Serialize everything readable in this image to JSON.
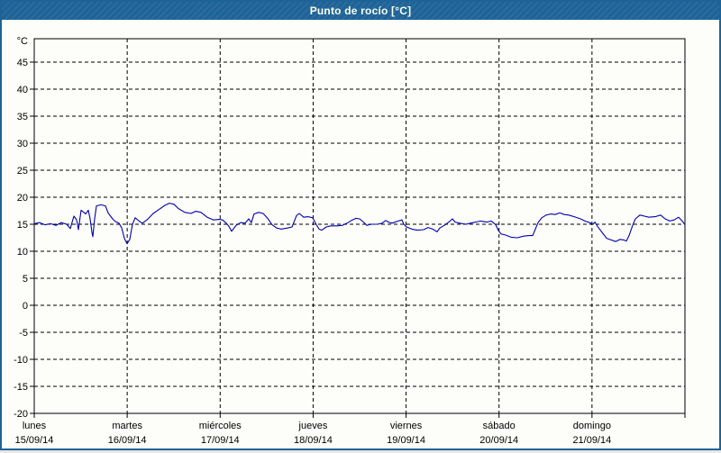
{
  "title": "Punto de rocío [°C]",
  "colors": {
    "titlebar": "#1E6397",
    "window_border": "#1E6397",
    "title_text": "#FCFCF0",
    "plot_background": "#FDFEFA",
    "axis": "#000000",
    "grid": "#000000",
    "line": "#0000AA",
    "label_text": "#000000"
  },
  "chart_data": {
    "type": "line",
    "title": "Punto de rocío [°C]",
    "ylabel": "°C",
    "unit_label": "°C",
    "ylim": [
      -20,
      49.33
    ],
    "yticks": [
      45,
      40,
      35,
      30,
      25,
      20,
      15,
      10,
      5,
      0,
      -5,
      -10,
      -15,
      -20
    ],
    "grid": "dashed",
    "legend": "none",
    "days": [
      {
        "name": "lunes",
        "date": "15/09/14"
      },
      {
        "name": "martes",
        "date": "16/09/14"
      },
      {
        "name": "miércoles",
        "date": "17/09/14"
      },
      {
        "name": "jueves",
        "date": "18/09/14"
      },
      {
        "name": "viernes",
        "date": "19/09/14"
      },
      {
        "name": "sábado",
        "date": "20/09/14"
      },
      {
        "name": "domingo",
        "date": "21/09/14"
      }
    ],
    "x_unit": "days_from_monday_midnight",
    "series": [
      {
        "name": "Punto de rocío",
        "color": "#0000AA",
        "points": [
          [
            0.0,
            15.1
          ],
          [
            0.058,
            15.3
          ],
          [
            0.116,
            14.9
          ],
          [
            0.175,
            15.1
          ],
          [
            0.233,
            14.8
          ],
          [
            0.291,
            15.3
          ],
          [
            0.349,
            15.0
          ],
          [
            0.388,
            14.2
          ],
          [
            0.427,
            16.5
          ],
          [
            0.456,
            15.8
          ],
          [
            0.475,
            14.0
          ],
          [
            0.504,
            17.6
          ],
          [
            0.533,
            17.2
          ],
          [
            0.553,
            16.9
          ],
          [
            0.582,
            17.6
          ],
          [
            0.601,
            16.0
          ],
          [
            0.621,
            13.4
          ],
          [
            0.63,
            12.7
          ],
          [
            0.65,
            16.0
          ],
          [
            0.669,
            18.4
          ],
          [
            0.717,
            18.6
          ],
          [
            0.766,
            18.4
          ],
          [
            0.795,
            17.1
          ],
          [
            0.843,
            16.0
          ],
          [
            0.873,
            15.5
          ],
          [
            0.911,
            15.2
          ],
          [
            0.941,
            14.3
          ],
          [
            0.97,
            12.4
          ],
          [
            0.999,
            11.4
          ],
          [
            1.028,
            12.2
          ],
          [
            1.057,
            15.0
          ],
          [
            1.086,
            16.2
          ],
          [
            1.134,
            15.5
          ],
          [
            1.163,
            15.2
          ],
          [
            1.212,
            15.8
          ],
          [
            1.28,
            17.0
          ],
          [
            1.348,
            17.8
          ],
          [
            1.406,
            18.5
          ],
          [
            1.454,
            18.9
          ],
          [
            1.503,
            18.7
          ],
          [
            1.551,
            17.9
          ],
          [
            1.619,
            17.2
          ],
          [
            1.687,
            17.0
          ],
          [
            1.735,
            17.4
          ],
          [
            1.794,
            17.2
          ],
          [
            1.861,
            16.3
          ],
          [
            1.929,
            15.8
          ],
          [
            1.988,
            15.9
          ],
          [
            2.026,
            15.8
          ],
          [
            2.065,
            15.2
          ],
          [
            2.094,
            14.6
          ],
          [
            2.123,
            13.7
          ],
          [
            2.172,
            14.8
          ],
          [
            2.22,
            15.3
          ],
          [
            2.269,
            15.2
          ],
          [
            2.307,
            16.0
          ],
          [
            2.336,
            15.3
          ],
          [
            2.365,
            16.9
          ],
          [
            2.414,
            17.2
          ],
          [
            2.462,
            17.0
          ],
          [
            2.511,
            16.1
          ],
          [
            2.559,
            14.9
          ],
          [
            2.608,
            14.3
          ],
          [
            2.656,
            14.1
          ],
          [
            2.724,
            14.3
          ],
          [
            2.773,
            14.5
          ],
          [
            2.821,
            16.6
          ],
          [
            2.85,
            17.0
          ],
          [
            2.899,
            16.3
          ],
          [
            2.947,
            16.4
          ],
          [
            2.996,
            16.2
          ],
          [
            3.025,
            15.2
          ],
          [
            3.064,
            14.1
          ],
          [
            3.093,
            13.9
          ],
          [
            3.141,
            14.5
          ],
          [
            3.19,
            14.7
          ],
          [
            3.258,
            14.7
          ],
          [
            3.316,
            14.8
          ],
          [
            3.364,
            15.2
          ],
          [
            3.413,
            15.7
          ],
          [
            3.461,
            16.1
          ],
          [
            3.5,
            16.0
          ],
          [
            3.549,
            15.3
          ],
          [
            3.578,
            14.8
          ],
          [
            3.626,
            15.0
          ],
          [
            3.694,
            15.0
          ],
          [
            3.742,
            15.2
          ],
          [
            3.781,
            15.7
          ],
          [
            3.81,
            15.4
          ],
          [
            3.849,
            15.2
          ],
          [
            3.917,
            15.6
          ],
          [
            3.956,
            15.8
          ],
          [
            3.975,
            15.0
          ],
          [
            4.005,
            14.5
          ],
          [
            4.063,
            14.1
          ],
          [
            4.121,
            13.9
          ],
          [
            4.189,
            14.0
          ],
          [
            4.237,
            14.4
          ],
          [
            4.286,
            14.1
          ],
          [
            4.334,
            13.6
          ],
          [
            4.363,
            14.3
          ],
          [
            4.412,
            14.8
          ],
          [
            4.46,
            15.4
          ],
          [
            4.499,
            16.0
          ],
          [
            4.528,
            15.4
          ],
          [
            4.577,
            15.2
          ],
          [
            4.645,
            15.0
          ],
          [
            4.693,
            15.2
          ],
          [
            4.751,
            15.4
          ],
          [
            4.8,
            15.6
          ],
          [
            4.868,
            15.4
          ],
          [
            4.916,
            15.6
          ],
          [
            4.965,
            14.9
          ],
          [
            4.994,
            13.8
          ],
          [
            5.023,
            13.2
          ],
          [
            5.071,
            13.0
          ],
          [
            5.13,
            12.6
          ],
          [
            5.197,
            12.5
          ],
          [
            5.265,
            12.8
          ],
          [
            5.323,
            12.9
          ],
          [
            5.362,
            12.9
          ],
          [
            5.391,
            14.1
          ],
          [
            5.42,
            15.3
          ],
          [
            5.459,
            16.2
          ],
          [
            5.507,
            16.7
          ],
          [
            5.556,
            16.9
          ],
          [
            5.604,
            16.8
          ],
          [
            5.653,
            17.1
          ],
          [
            5.701,
            16.8
          ],
          [
            5.75,
            16.7
          ],
          [
            5.808,
            16.4
          ],
          [
            5.876,
            16.0
          ],
          [
            5.924,
            15.6
          ],
          [
            5.973,
            15.3
          ],
          [
            6.011,
            15.0
          ],
          [
            6.031,
            15.4
          ],
          [
            6.06,
            14.6
          ],
          [
            6.108,
            13.5
          ],
          [
            6.157,
            12.4
          ],
          [
            6.205,
            12.1
          ],
          [
            6.254,
            11.8
          ],
          [
            6.302,
            12.2
          ],
          [
            6.341,
            12.1
          ],
          [
            6.37,
            11.9
          ],
          [
            6.399,
            12.9
          ],
          [
            6.438,
            14.8
          ],
          [
            6.467,
            16.0
          ],
          [
            6.515,
            16.7
          ],
          [
            6.564,
            16.5
          ],
          [
            6.612,
            16.3
          ],
          [
            6.68,
            16.4
          ],
          [
            6.738,
            16.7
          ],
          [
            6.787,
            16.0
          ],
          [
            6.835,
            15.6
          ],
          [
            6.884,
            15.8
          ],
          [
            6.932,
            16.3
          ],
          [
            6.971,
            15.6
          ],
          [
            7.0,
            14.9
          ]
        ]
      }
    ]
  }
}
